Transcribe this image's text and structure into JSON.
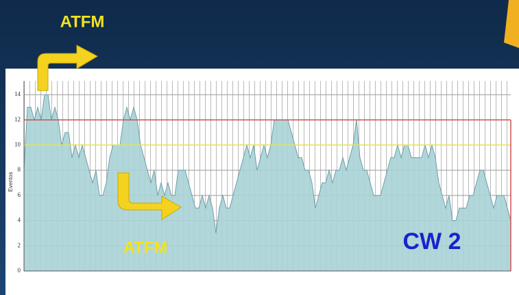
{
  "chart_data": {
    "type": "area",
    "ylabel": "Eventos",
    "values": [
      8,
      13,
      13,
      12,
      13,
      12,
      14,
      14,
      12,
      13,
      12,
      10,
      11,
      11,
      9,
      10,
      9,
      10,
      9,
      8,
      7,
      8,
      6,
      6,
      7,
      9,
      10,
      10,
      10,
      12,
      13,
      12,
      13,
      12,
      10,
      9,
      8,
      7,
      8,
      6,
      7,
      6,
      7,
      6,
      6,
      8,
      8,
      8,
      7,
      6,
      5,
      5,
      6,
      5,
      6,
      5,
      3,
      5,
      6,
      5,
      5,
      6,
      7,
      8,
      9,
      10,
      9,
      10,
      8,
      9,
      10,
      9,
      10,
      12,
      12,
      12,
      12,
      12,
      11,
      10,
      9,
      9,
      8,
      8,
      7,
      5,
      6,
      7,
      7,
      8,
      7,
      8,
      8,
      9,
      8,
      9,
      10,
      12,
      9,
      8,
      8,
      7,
      6,
      6,
      6,
      7,
      8,
      9,
      9,
      10,
      9,
      10,
      10,
      9,
      9,
      9,
      9,
      10,
      9,
      10,
      9,
      7,
      6,
      5,
      6,
      4,
      4,
      5,
      5,
      5,
      6,
      6,
      7,
      8,
      8,
      7,
      6,
      5,
      6,
      6,
      6,
      5,
      4
    ],
    "color": "#a9d3d6",
    "line_color": "#6e9ea8",
    "ylim": [
      0,
      14
    ],
    "yticks": [
      0,
      2,
      4,
      6,
      8,
      10,
      12,
      14
    ],
    "grid": true,
    "reference_lines": [
      {
        "value": 10,
        "color": "#e6e64a"
      },
      {
        "value": 12,
        "color": "#d05050"
      }
    ],
    "annotations": [
      "ATFM",
      "ATFM",
      "CW 2"
    ]
  }
}
